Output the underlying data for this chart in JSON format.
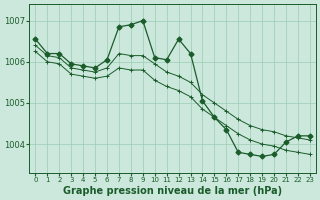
{
  "background_color": "#cce8dc",
  "grid_color": "#99ccb5",
  "line_color": "#1a5c2a",
  "title": "Graphe pression niveau de la mer (hPa)",
  "xlim": [
    -0.5,
    23.5
  ],
  "ylim": [
    1003.3,
    1007.4
  ],
  "yticks": [
    1004,
    1005,
    1006,
    1007
  ],
  "xticks": [
    0,
    1,
    2,
    3,
    4,
    5,
    6,
    7,
    8,
    9,
    10,
    11,
    12,
    13,
    14,
    15,
    16,
    17,
    18,
    19,
    20,
    21,
    22,
    23
  ],
  "series1": {
    "x": [
      0,
      1,
      2,
      3,
      4,
      5,
      6,
      7,
      8,
      9,
      10,
      11,
      12,
      13,
      14,
      15,
      16,
      17,
      18,
      19,
      20,
      21,
      22,
      23
    ],
    "y": [
      1006.55,
      1006.2,
      1006.2,
      1005.95,
      1005.9,
      1005.85,
      1006.05,
      1006.85,
      1006.9,
      1007.0,
      1006.1,
      1006.05,
      1006.55,
      1006.2,
      1005.05,
      1004.65,
      1004.35,
      1003.8,
      1003.75,
      1003.7,
      1003.75,
      1004.05,
      1004.2,
      1004.2
    ]
  },
  "series2": {
    "x": [
      0,
      1,
      2,
      3,
      4,
      5,
      6,
      7,
      8,
      9,
      10,
      11,
      12,
      13,
      14,
      15,
      16,
      17,
      18,
      19,
      20,
      21,
      22,
      23
    ],
    "y": [
      1006.4,
      1006.15,
      1006.1,
      1005.85,
      1005.8,
      1005.75,
      1005.85,
      1006.2,
      1006.15,
      1006.15,
      1005.95,
      1005.75,
      1005.65,
      1005.5,
      1005.2,
      1005.0,
      1004.8,
      1004.6,
      1004.45,
      1004.35,
      1004.3,
      1004.2,
      1004.15,
      1004.1
    ]
  },
  "series3": {
    "x": [
      0,
      1,
      2,
      3,
      4,
      5,
      6,
      7,
      8,
      9,
      10,
      11,
      12,
      13,
      14,
      15,
      16,
      17,
      18,
      19,
      20,
      21,
      22,
      23
    ],
    "y": [
      1006.25,
      1006.0,
      1005.95,
      1005.7,
      1005.65,
      1005.6,
      1005.65,
      1005.85,
      1005.8,
      1005.8,
      1005.55,
      1005.4,
      1005.3,
      1005.15,
      1004.85,
      1004.65,
      1004.45,
      1004.25,
      1004.1,
      1004.0,
      1003.95,
      1003.85,
      1003.8,
      1003.75
    ]
  }
}
